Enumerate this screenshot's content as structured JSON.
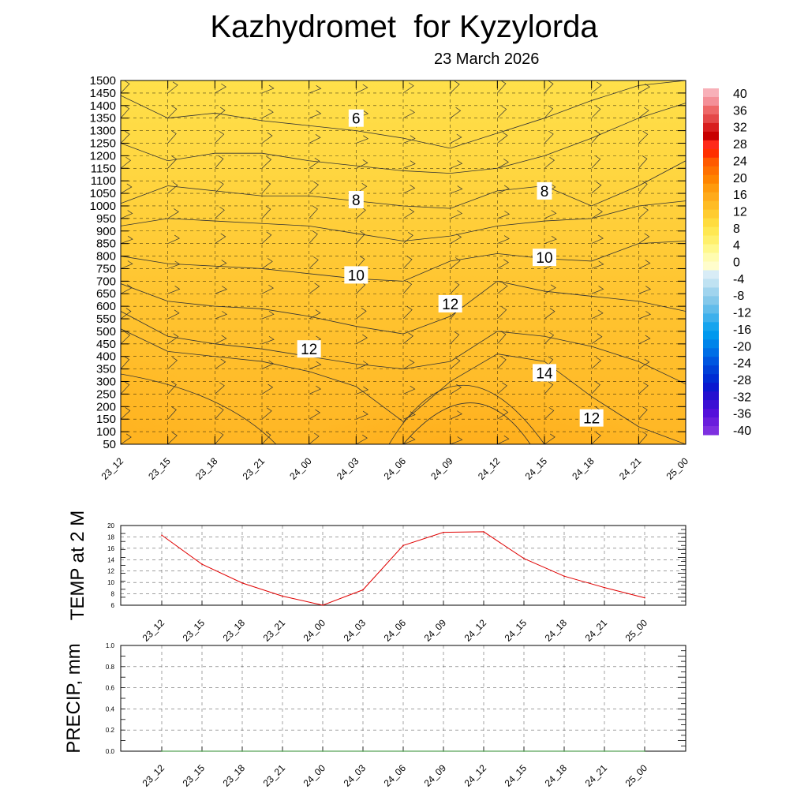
{
  "header": {
    "title": "Kazhydromet  for Kyzylorda",
    "date": "23 March 2026"
  },
  "chart_data": [
    {
      "type": "heatmap",
      "name": "cross-section",
      "x": [
        "23_12",
        "23_15",
        "23_18",
        "23_21",
        "24_00",
        "24_03",
        "24_06",
        "24_09",
        "24_12",
        "24_15",
        "24_18",
        "24_21",
        "25_00"
      ],
      "y_levels": [
        50,
        100,
        150,
        200,
        250,
        300,
        350,
        400,
        450,
        500,
        550,
        600,
        650,
        700,
        750,
        800,
        850,
        900,
        950,
        1000,
        1050,
        1100,
        1150,
        1200,
        1250,
        1300,
        1350,
        1400,
        1450,
        1500
      ],
      "y_tick_labels": [
        "50",
        "100",
        "150",
        "200",
        "250",
        "300",
        "350",
        "400",
        "450",
        "500",
        "550",
        "600",
        "650",
        "700",
        "750",
        "800",
        "850",
        "900",
        "950",
        "1000",
        "1050",
        "1100",
        "1150",
        "1200",
        "1250",
        "1300",
        "1350",
        "1400",
        "1450",
        "1500"
      ],
      "contour_labels": [
        {
          "text": "6",
          "x": "24_03",
          "y": 1350
        },
        {
          "text": "8",
          "x": "24_03",
          "y": 1025
        },
        {
          "text": "8",
          "x": "24_15",
          "y": 1060
        },
        {
          "text": "10",
          "x": "24_03",
          "y": 725
        },
        {
          "text": "10",
          "x": "24_15",
          "y": 795
        },
        {
          "text": "12",
          "x": "24_00",
          "y": 430
        },
        {
          "text": "12",
          "x": "24_09",
          "y": 610
        },
        {
          "text": "14",
          "x": "24_15",
          "y": 335
        },
        {
          "text": "12",
          "x": "24_18",
          "y": 155
        }
      ],
      "colorbar": {
        "labels": [
          "40",
          "36",
          "32",
          "28",
          "24",
          "20",
          "16",
          "12",
          "8",
          "4",
          "0",
          "-4",
          "-8",
          "-12",
          "-16",
          "-20",
          "-24",
          "-28",
          "-32",
          "-36",
          "-40"
        ],
        "colors": [
          "#f8b0b8",
          "#f49098",
          "#ee6868",
          "#e44848",
          "#d81e1e",
          "#c80000",
          "#ff2a1a",
          "#ff3000",
          "#ff5a00",
          "#ff7000",
          "#ff8400",
          "#ff9a0c",
          "#ffaa1a",
          "#ffbc24",
          "#ffcc30",
          "#ffdc3e",
          "#ffe852",
          "#fff06c",
          "#fff88c",
          "#fffcb0",
          "#fffdcc",
          "#d8ecf6",
          "#bfe2f2",
          "#a0d4ee",
          "#84c8ea",
          "#62bcea",
          "#3eb0ec",
          "#16a4ee",
          "#0098ee",
          "#0084ea",
          "#006ee6",
          "#0056e0",
          "#0040d8",
          "#002cd4",
          "#0a18d0",
          "#2410d0",
          "#3c10d4",
          "#5410da",
          "#6a1edc",
          "#7e30e0"
        ]
      }
    },
    {
      "type": "line",
      "name": "temp-2m",
      "ylabel": "TEMP at 2 M",
      "x": [
        "23_12",
        "23_15",
        "23_18",
        "23_21",
        "24_00",
        "24_03",
        "24_06",
        "24_09",
        "24_12",
        "24_15",
        "24_18",
        "24_21",
        "25_00"
      ],
      "values": [
        18.3,
        13.2,
        9.9,
        7.6,
        6.0,
        8.7,
        16.5,
        18.8,
        18.9,
        14.2,
        11.1,
        9.1,
        7.3
      ],
      "ylim": [
        6,
        20
      ],
      "yticks": [
        "6",
        "8",
        "10",
        "12",
        "14",
        "16",
        "18",
        "20"
      ],
      "line_color": "#e00000"
    },
    {
      "type": "line",
      "name": "precip",
      "ylabel": "PRECIP, mm",
      "x": [
        "23_12",
        "23_15",
        "23_18",
        "23_21",
        "24_00",
        "24_03",
        "24_06",
        "24_09",
        "24_12",
        "24_15",
        "24_18",
        "24_21",
        "25_00"
      ],
      "values": [
        0,
        0,
        0,
        0,
        0,
        0,
        0,
        0,
        0,
        0,
        0,
        0,
        0
      ],
      "ylim": [
        0,
        1.0
      ],
      "yticks": [
        "0.0",
        "0.2",
        "0.4",
        "0.6",
        "0.8",
        "1.0"
      ],
      "line_color": "#2e8b2e"
    }
  ]
}
